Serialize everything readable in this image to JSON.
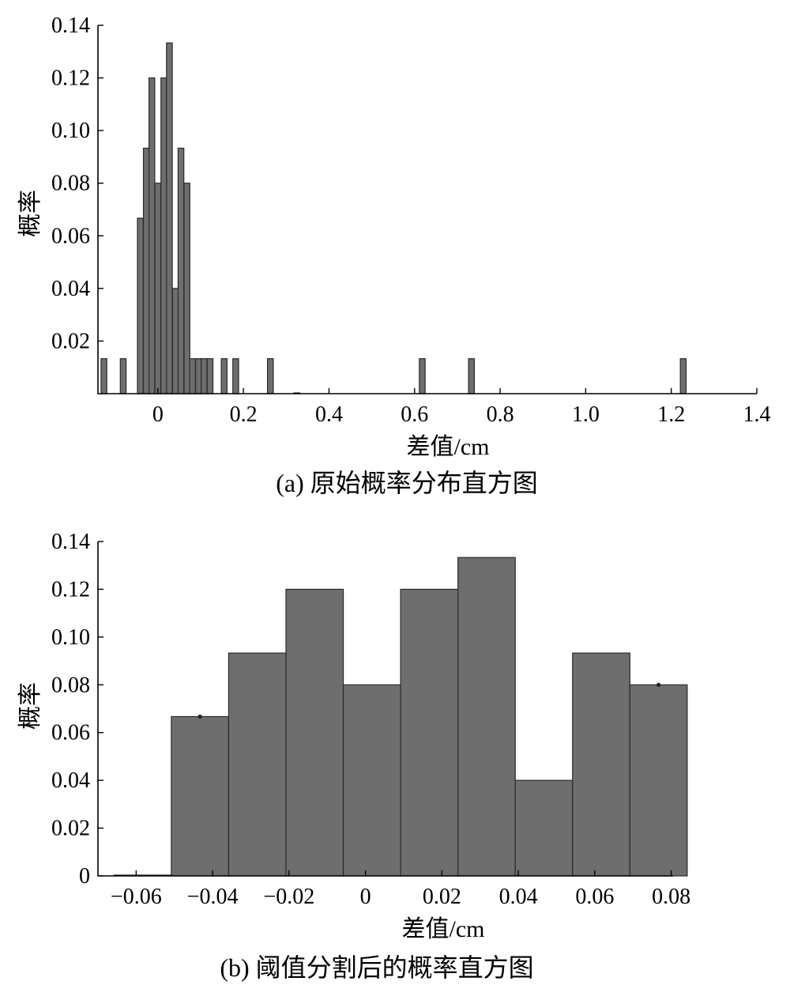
{
  "chart_data": [
    {
      "type": "bar",
      "subtype": "histogram",
      "caption": "(a) 原始概率分布直方图",
      "xlabel": "差值/cm",
      "ylabel": "概率",
      "xlim": [
        -0.14,
        1.4
      ],
      "ylim": [
        0,
        0.14
      ],
      "xticks": [
        0,
        0.2,
        0.4,
        0.6,
        0.8,
        1.0,
        1.2,
        1.4
      ],
      "xtick_labels": [
        "0",
        "0.2",
        "0.4",
        "0.6",
        "0.8",
        "1.0",
        "1.2",
        "1.4"
      ],
      "yticks": [
        0.02,
        0.04,
        0.06,
        0.08,
        0.1,
        0.12,
        0.14
      ],
      "ytick_labels": [
        "0.02",
        "0.04",
        "0.06",
        "0.08",
        "0.10",
        "0.12",
        "0.14"
      ],
      "bin_width": 0.0135,
      "grid": false,
      "bins": [
        {
          "x": -0.126,
          "value": 0.0133
        },
        {
          "x": -0.081,
          "value": 0.0133
        },
        {
          "x": -0.041,
          "value": 0.0667
        },
        {
          "x": -0.027,
          "value": 0.0933
        },
        {
          "x": -0.014,
          "value": 0.12
        },
        {
          "x": 0.0,
          "value": 0.08
        },
        {
          "x": 0.014,
          "value": 0.12
        },
        {
          "x": 0.027,
          "value": 0.1333
        },
        {
          "x": 0.041,
          "value": 0.04
        },
        {
          "x": 0.054,
          "value": 0.0933
        },
        {
          "x": 0.068,
          "value": 0.08
        },
        {
          "x": 0.081,
          "value": 0.0133
        },
        {
          "x": 0.095,
          "value": 0.0133
        },
        {
          "x": 0.108,
          "value": 0.0133
        },
        {
          "x": 0.122,
          "value": 0.0133
        },
        {
          "x": 0.155,
          "value": 0.0133
        },
        {
          "x": 0.182,
          "value": 0.0133
        },
        {
          "x": 0.263,
          "value": 0.0133
        },
        {
          "x": 0.325,
          "value": 0.0003
        },
        {
          "x": 0.618,
          "value": 0.0133
        },
        {
          "x": 0.733,
          "value": 0.0133
        },
        {
          "x": 1.228,
          "value": 0.0133
        }
      ]
    },
    {
      "type": "bar",
      "subtype": "histogram",
      "caption": "(b) 阈值分割后的概率直方图",
      "xlabel": "差值/cm",
      "ylabel": "概率",
      "xlim": [
        -0.07,
        0.0805
      ],
      "ylim": [
        0,
        0.14
      ],
      "xticks": [
        -0.06,
        -0.04,
        -0.02,
        0,
        0.02,
        0.04,
        0.06,
        0.08
      ],
      "xtick_labels": [
        "−0.06",
        "−0.04",
        "−0.02",
        "0",
        "0.02",
        "0.04",
        "0.06",
        "0.08"
      ],
      "yticks": [
        0,
        0.02,
        0.04,
        0.06,
        0.08,
        0.1,
        0.12,
        0.14
      ],
      "ytick_labels": [
        "0",
        "0.02",
        "0.04",
        "0.06",
        "0.08",
        "0.10",
        "0.12",
        "0.14"
      ],
      "grid": false,
      "bins": [
        {
          "x0": -0.0658,
          "x1": -0.0508,
          "value": 0.0
        },
        {
          "x0": -0.0508,
          "x1": -0.0358,
          "value": 0.0667
        },
        {
          "x0": -0.0358,
          "x1": -0.0208,
          "value": 0.0933
        },
        {
          "x0": -0.0208,
          "x1": -0.0058,
          "value": 0.12
        },
        {
          "x0": -0.0058,
          "x1": 0.0092,
          "value": 0.08
        },
        {
          "x0": 0.0092,
          "x1": 0.0242,
          "value": 0.12
        },
        {
          "x0": 0.0242,
          "x1": 0.0392,
          "value": 0.1333
        },
        {
          "x0": 0.0392,
          "x1": 0.0542,
          "value": 0.04
        },
        {
          "x0": 0.0542,
          "x1": 0.0692,
          "value": 0.0933
        },
        {
          "x0": 0.0692,
          "x1": 0.0842,
          "value": 0.08
        }
      ],
      "markers": [
        {
          "x": -0.0433,
          "y": 0.0667
        },
        {
          "x": 0.0767,
          "y": 0.08
        }
      ]
    }
  ]
}
